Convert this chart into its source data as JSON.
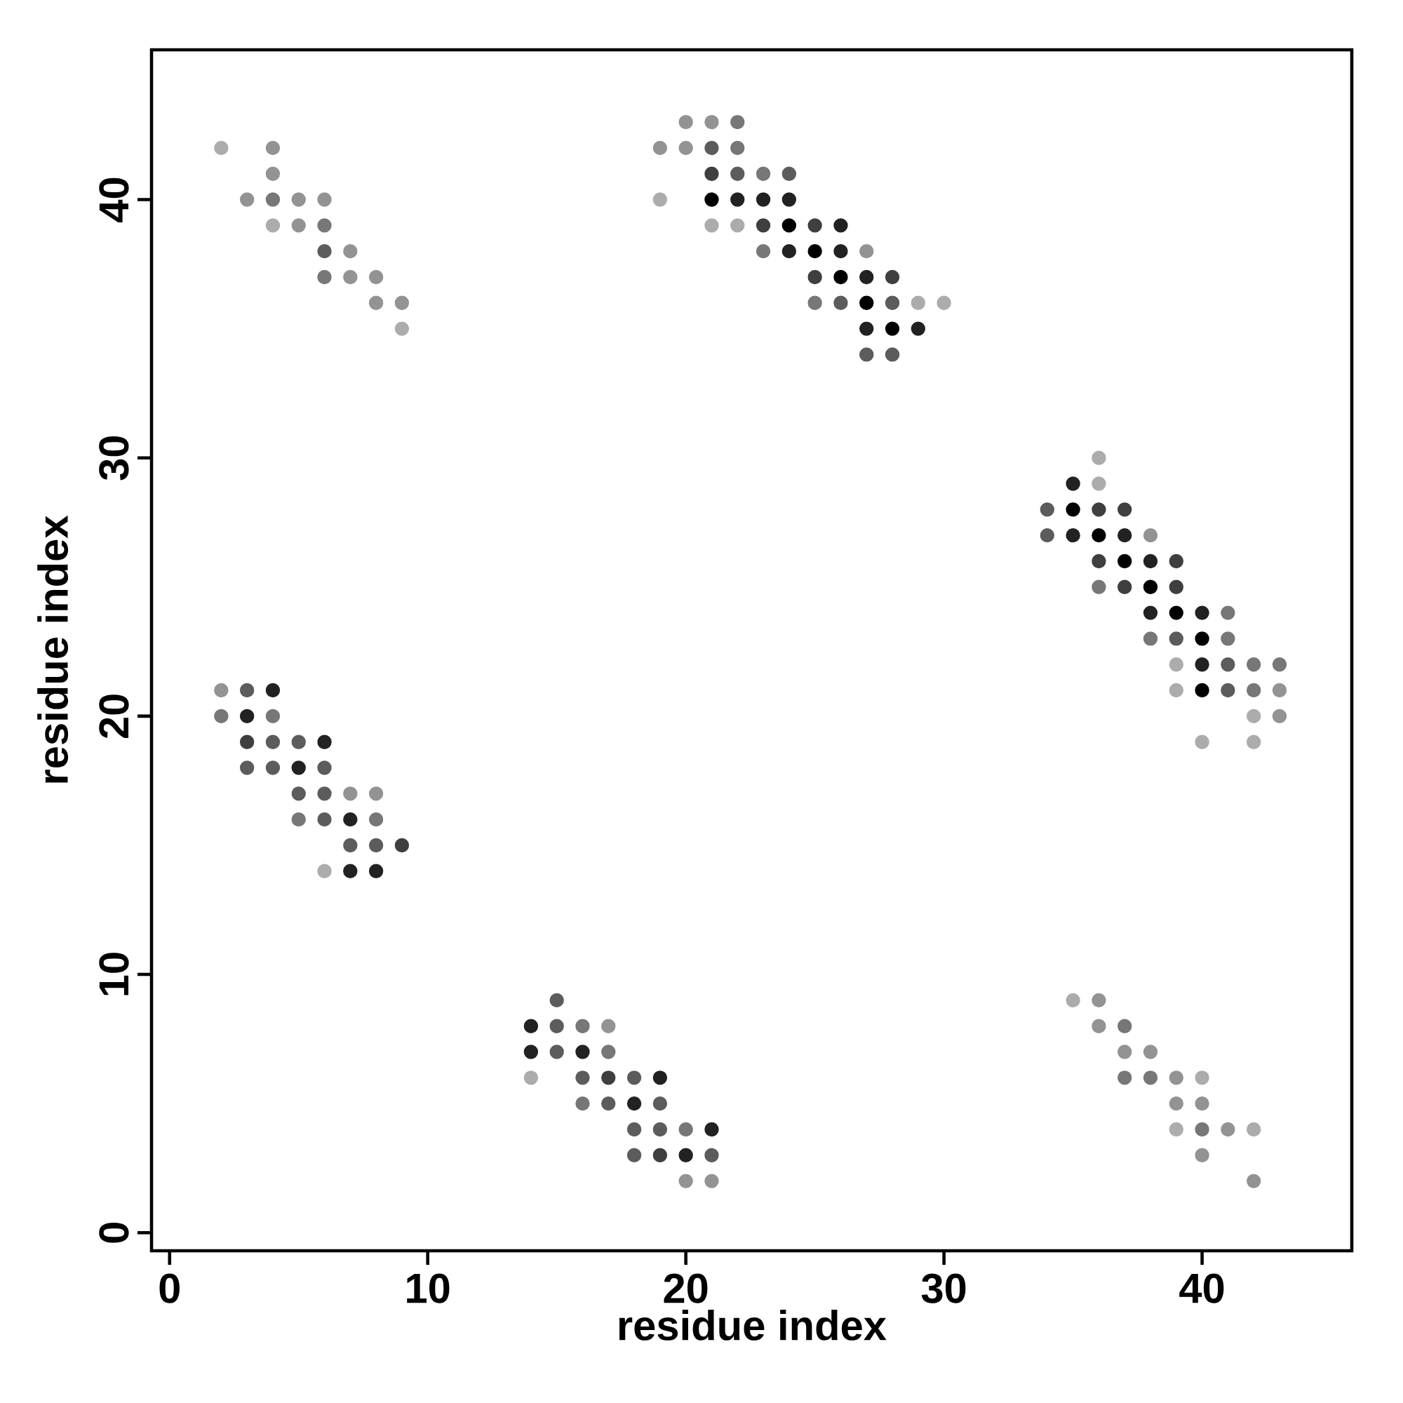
{
  "chart_data": {
    "type": "scatter",
    "xlabel": "residue index",
    "ylabel": "residue index",
    "xlim": [
      -0.7,
      45.8
    ],
    "ylim": [
      -0.7,
      45.8
    ],
    "xticks": [
      0,
      10,
      20,
      30,
      40
    ],
    "yticks": [
      0,
      10,
      20,
      30,
      40
    ],
    "series": [
      {
        "color": "#000000",
        "x": [
          21,
          24,
          25,
          26,
          27,
          28,
          35,
          36,
          37,
          38,
          39,
          40,
          40
        ],
        "values": [
          40,
          39,
          38,
          37,
          36,
          35,
          28,
          27,
          26,
          25,
          24,
          23,
          21
        ]
      },
      {
        "color": "#222222",
        "x": [
          22,
          23,
          24,
          24,
          26,
          26,
          27,
          27,
          29,
          35,
          35,
          37,
          38,
          38,
          40,
          40,
          3,
          4,
          5,
          6,
          7,
          7,
          8,
          14,
          14,
          16,
          18,
          19,
          20,
          21
        ],
        "values": [
          40,
          40,
          40,
          38,
          39,
          38,
          37,
          35,
          35,
          29,
          27,
          27,
          26,
          24,
          24,
          22,
          20,
          21,
          18,
          19,
          16,
          14,
          14,
          8,
          7,
          7,
          5,
          6,
          3,
          4
        ]
      },
      {
        "color": "#3f3f3f",
        "x": [
          21,
          23,
          25,
          25,
          28,
          36,
          36,
          37,
          37,
          39,
          39,
          3,
          9,
          17,
          19
        ],
        "values": [
          41,
          39,
          39,
          37,
          37,
          28,
          26,
          28,
          25,
          26,
          25,
          19,
          15,
          6,
          3
        ]
      },
      {
        "color": "#5c5c5c",
        "x": [
          6,
          21,
          22,
          24,
          26,
          27,
          28,
          28,
          34,
          34,
          39,
          41,
          41,
          3,
          3,
          4,
          4,
          5,
          5,
          6,
          6,
          6,
          7,
          8,
          15,
          15,
          15,
          16,
          17,
          18,
          18,
          18,
          19,
          19,
          21
        ],
        "values": [
          38,
          42,
          41,
          41,
          36,
          34,
          36,
          34,
          28,
          27,
          23,
          22,
          21,
          21,
          18,
          19,
          18,
          19,
          17,
          18,
          17,
          16,
          15,
          15,
          9,
          8,
          7,
          6,
          5,
          6,
          4,
          3,
          5,
          4,
          3
        ]
      },
      {
        "color": "#777777",
        "x": [
          4,
          6,
          6,
          22,
          22,
          23,
          23,
          25,
          36,
          38,
          41,
          41,
          42,
          42,
          43,
          2,
          4,
          5,
          8,
          16,
          16,
          17,
          20,
          37,
          37,
          38,
          40
        ],
        "values": [
          40,
          39,
          37,
          43,
          42,
          41,
          38,
          36,
          25,
          23,
          24,
          23,
          22,
          21,
          22,
          20,
          20,
          16,
          16,
          8,
          5,
          7,
          4,
          8,
          6,
          6,
          4
        ]
      },
      {
        "color": "#939393",
        "x": [
          3,
          4,
          4,
          5,
          5,
          6,
          7,
          7,
          8,
          8,
          9,
          19,
          20,
          20,
          21,
          27,
          38,
          43,
          43,
          2,
          7,
          8,
          17,
          20,
          21,
          36,
          36,
          37,
          38,
          39,
          39,
          40,
          40,
          41,
          42
        ],
        "values": [
          40,
          42,
          41,
          40,
          39,
          40,
          38,
          37,
          37,
          36,
          36,
          42,
          43,
          42,
          43,
          38,
          27,
          21,
          20,
          21,
          17,
          17,
          8,
          2,
          2,
          9,
          8,
          7,
          7,
          6,
          5,
          5,
          3,
          4,
          2
        ]
      },
      {
        "color": "#acacac",
        "x": [
          2,
          4,
          9,
          19,
          21,
          22,
          29,
          30,
          36,
          36,
          39,
          39,
          40,
          42,
          42,
          6,
          14,
          35,
          39,
          40,
          42
        ],
        "values": [
          42,
          39,
          35,
          40,
          39,
          39,
          36,
          36,
          30,
          29,
          22,
          21,
          19,
          20,
          19,
          14,
          6,
          9,
          4,
          6,
          4
        ]
      }
    ]
  }
}
